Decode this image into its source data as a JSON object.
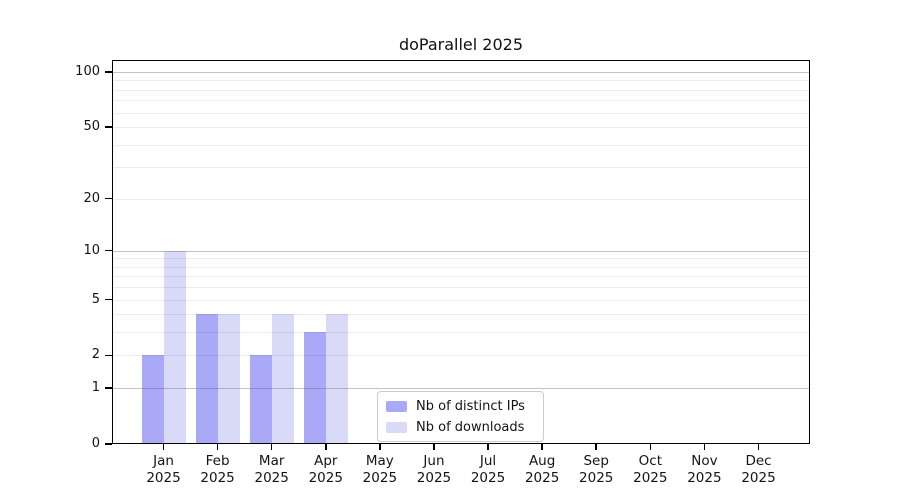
{
  "chart_data": {
    "type": "bar",
    "title": "doParallel 2025",
    "categories": [
      "Jan",
      "Feb",
      "Mar",
      "Apr",
      "May",
      "Jun",
      "Jul",
      "Aug",
      "Sep",
      "Oct",
      "Nov",
      "Dec"
    ],
    "x_year_label": "2025",
    "series": [
      {
        "name": "Nb of distinct IPs",
        "color": "#a9a9f8",
        "values": [
          2,
          4,
          2,
          3,
          0,
          0,
          0,
          0,
          0,
          0,
          0,
          0
        ]
      },
      {
        "name": "Nb of downloads",
        "color": "#d9d9f8",
        "values": [
          10,
          4,
          4,
          4,
          0,
          0,
          0,
          0,
          0,
          0,
          0,
          0
        ]
      }
    ],
    "y_axis": {
      "scale": "log1p",
      "tick_labels": [
        0,
        1,
        2,
        5,
        10,
        20,
        50,
        100
      ],
      "major_gridlines": [
        1,
        10,
        100
      ],
      "minor_gridlines": [
        2,
        3,
        4,
        5,
        6,
        7,
        8,
        9,
        20,
        30,
        40,
        50,
        60,
        70,
        80,
        90
      ],
      "top_value": 116,
      "bottom_value": 0
    },
    "legend": {
      "position": "lower center",
      "entries": [
        "Nb of distinct IPs",
        "Nb of downloads"
      ]
    },
    "grid": "on",
    "background": "#ffffff",
    "frame_color": "#000000"
  }
}
